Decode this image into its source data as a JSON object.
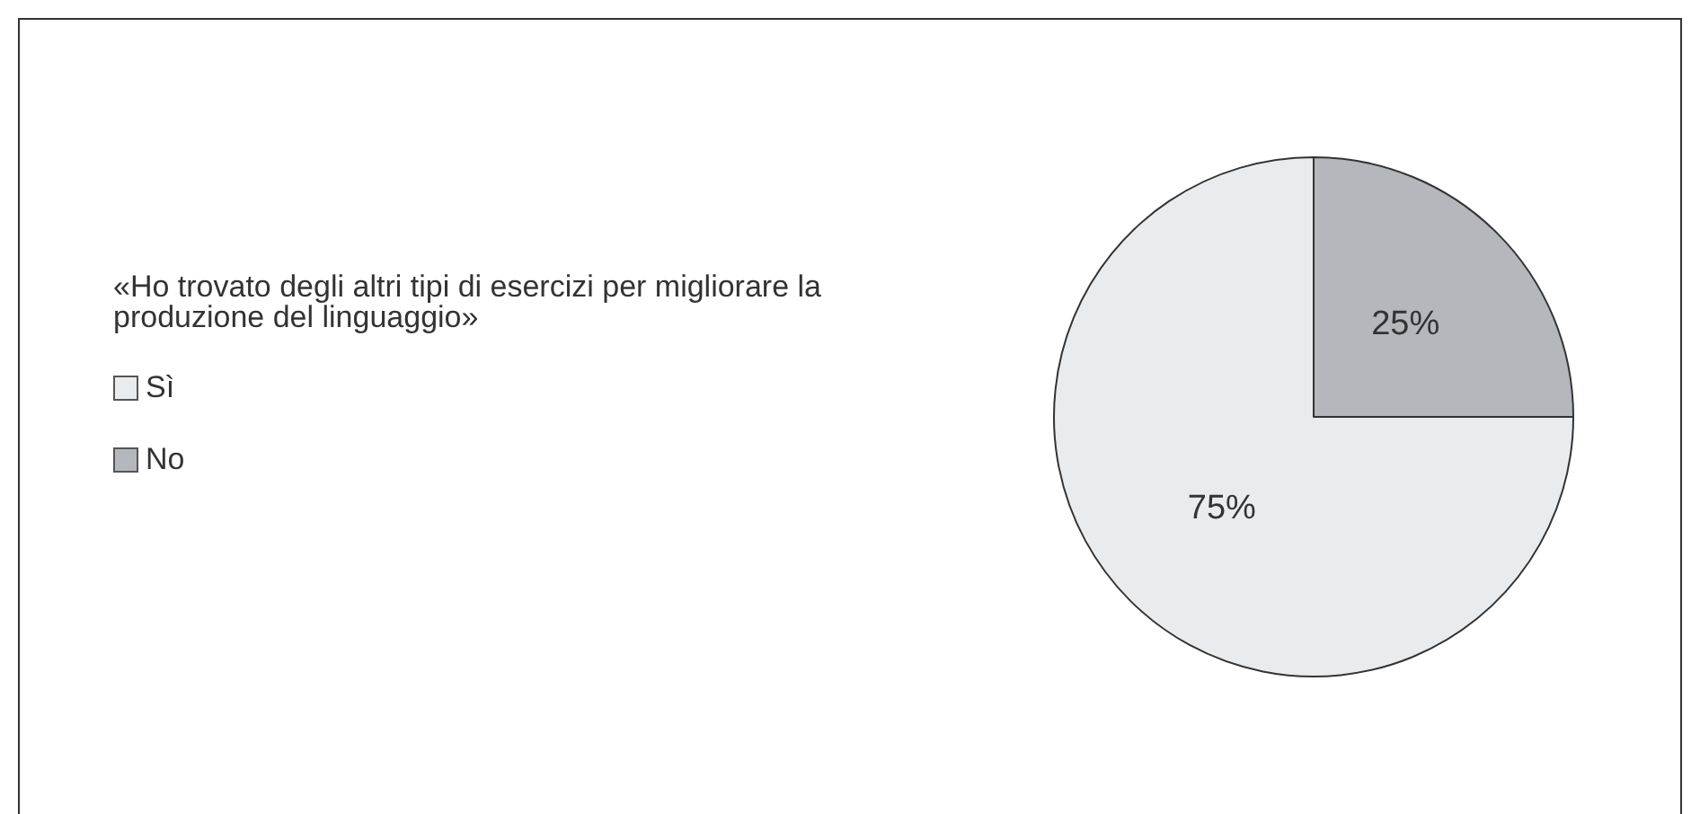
{
  "chart_data": {
    "type": "pie",
    "legend_title": "«Ho trovato degli altri tipi di esercizi per migliorare la produzione del linguaggio»",
    "categories": [
      "Sì",
      "No"
    ],
    "values": [
      75,
      25
    ],
    "colors": [
      "#e9ecee",
      "#b4b7bb"
    ],
    "value_labels": [
      "75%",
      "25%"
    ],
    "legend": "left"
  }
}
